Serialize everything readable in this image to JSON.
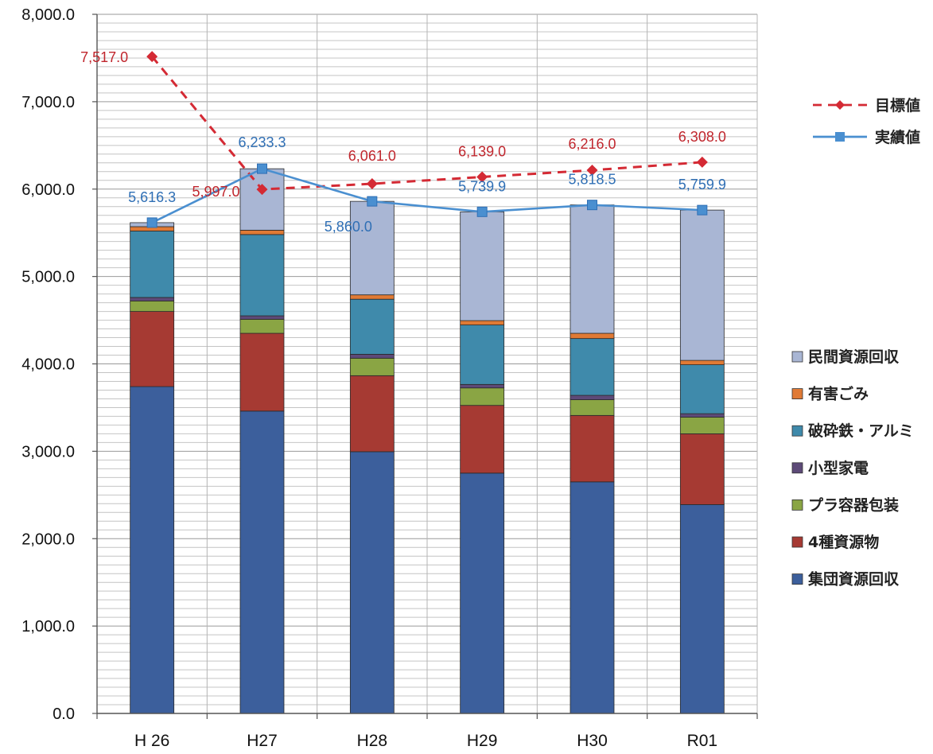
{
  "chart_data": {
    "type": "bar",
    "stacked": true,
    "categories": [
      "H 26",
      "H27",
      "H28",
      "H29",
      "H30",
      "R01"
    ],
    "ylim": [
      0,
      8000
    ],
    "yticks": [
      "0.0",
      "1,000.0",
      "2,000.0",
      "3,000.0",
      "4,000.0",
      "5,000.0",
      "6,000.0",
      "7,000.0",
      "8,000.0"
    ],
    "grid": true,
    "series": [
      {
        "name": "集団資源回収",
        "color": "#3c5f9c",
        "values": [
          3740,
          3460,
          2995,
          2750,
          2650,
          2390
        ]
      },
      {
        "name": "4種資源物",
        "color": "#a63a33",
        "values": [
          860,
          890,
          870,
          775,
          760,
          810
        ]
      },
      {
        "name": "プラ容器包装",
        "color": "#8aa544",
        "values": [
          120,
          160,
          200,
          200,
          180,
          190
        ]
      },
      {
        "name": "小型家電",
        "color": "#5d4a78",
        "values": [
          40,
          40,
          45,
          40,
          50,
          40
        ]
      },
      {
        "name": "破砕鉄・アルミ",
        "color": "#3f8aab",
        "values": [
          760,
          930,
          630,
          680,
          650,
          560
        ]
      },
      {
        "name": "有害ごみ",
        "color": "#e07a35",
        "values": [
          50,
          50,
          50,
          50,
          60,
          50
        ]
      },
      {
        "name": "民間資源回収",
        "color": "#a9b6d4",
        "values": [
          46,
          703,
          1070,
          1245,
          1469,
          1720
        ]
      }
    ],
    "lines": [
      {
        "name": "目標値",
        "color": "#d42a34",
        "style": "dashed",
        "marker": "diamond",
        "values": [
          7517.0,
          5997.0,
          6061.0,
          6139.0,
          6216.0,
          6308.0
        ],
        "labels": [
          "7,517.0",
          "5,997.0",
          "6,061.0",
          "6,139.0",
          "6,216.0",
          "6,308.0"
        ]
      },
      {
        "name": "実績値",
        "color": "#4a8fd0",
        "style": "solid",
        "marker": "square",
        "values": [
          5616.3,
          6233.3,
          5860.0,
          5739.9,
          5818.5,
          5759.9
        ],
        "labels": [
          "5,616.3",
          "6,233.3",
          "5,860.0",
          "5,739.9",
          "5,818.5",
          "5,759.9"
        ]
      }
    ],
    "legend_lines": [
      "目標値",
      "実績値"
    ],
    "legend_bars": [
      "民間資源回収",
      "有害ごみ",
      "破砕鉄・アルミ",
      "小型家電",
      "プラ容器包装",
      "4種資源物",
      "集団資源回収"
    ]
  }
}
